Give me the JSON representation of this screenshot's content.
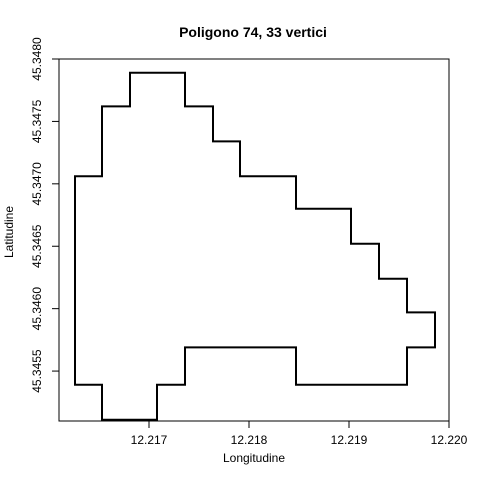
{
  "chart_data": {
    "type": "line",
    "title": "Poligono 74, 33 vertici",
    "xlabel": "Longitudine",
    "ylabel": "Latitudine",
    "xlim": [
      12.2161,
      12.22
    ],
    "ylim": [
      45.3451,
      45.348
    ],
    "xticks": [
      "12.217",
      "12.218",
      "12.219",
      "12.220"
    ],
    "xtick_values": [
      12.217,
      12.218,
      12.219,
      12.22
    ],
    "yticks": [
      "45.3455",
      "45.3460",
      "45.3465",
      "45.3470",
      "45.3475",
      "45.3480"
    ],
    "ytick_values": [
      45.3455,
      45.346,
      45.3465,
      45.347,
      45.3475,
      45.348
    ],
    "series": [
      {
        "closed": true,
        "x": [
          12.21626,
          12.21626,
          12.21653,
          12.21653,
          12.21681,
          12.21681,
          12.21736,
          12.21736,
          12.21764,
          12.21764,
          12.21791,
          12.21791,
          12.21847,
          12.21847,
          12.21902,
          12.21902,
          12.2193,
          12.2193,
          12.21958,
          12.21958,
          12.21986,
          12.21986,
          12.21958,
          12.21958,
          12.21847,
          12.21847,
          12.21736,
          12.21736,
          12.21708,
          12.21708,
          12.21653,
          12.21653,
          12.21626
        ],
        "y": [
          45.34539,
          45.34706,
          45.34706,
          45.34762,
          45.34762,
          45.34789,
          45.34789,
          45.34762,
          45.34762,
          45.34734,
          45.34734,
          45.34706,
          45.34706,
          45.3468,
          45.3468,
          45.34652,
          45.34652,
          45.34624,
          45.34624,
          45.34597,
          45.34597,
          45.34569,
          45.34569,
          45.34539,
          45.34539,
          45.34569,
          45.34569,
          45.34539,
          45.34539,
          45.34511,
          45.34511,
          45.34539,
          45.34539
        ]
      }
    ]
  }
}
